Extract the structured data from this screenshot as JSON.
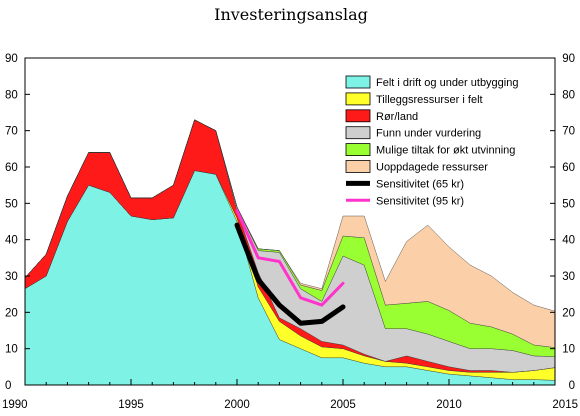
{
  "chart_data": {
    "type": "area",
    "title": "Investeringsanslag",
    "xlim": [
      1990,
      2015
    ],
    "ylim": [
      0,
      90
    ],
    "x_ticks": [
      1990,
      1995,
      2000,
      2005,
      2010,
      2015
    ],
    "y_ticks": [
      0,
      10,
      20,
      30,
      40,
      50,
      60,
      70,
      80,
      90
    ],
    "grid": false,
    "legend_position": "top-right",
    "x": [
      1990,
      1991,
      1992,
      1993,
      1994,
      1995,
      1996,
      1997,
      1998,
      1999,
      2000,
      2001,
      2002,
      2003,
      2004,
      2005,
      2006,
      2007,
      2008,
      2009,
      2010,
      2011,
      2012,
      2013,
      2014,
      2015
    ],
    "series": [
      {
        "name": "Felt i drift og under utbygging",
        "color": "#7ff2e6",
        "values": [
          26.5,
          30,
          45,
          55,
          53,
          46.5,
          45.5,
          46,
          59,
          58,
          45,
          24,
          12.5,
          10,
          7.5,
          7.5,
          6,
          5,
          5,
          4,
          3,
          2.5,
          2,
          1.5,
          1.5,
          1.3
        ]
      },
      {
        "name": "Tilleggsressurser i felt",
        "color": "#ffff2a",
        "values": [
          0,
          0,
          0,
          0,
          0,
          0,
          0,
          0,
          0,
          0,
          1,
          3,
          5,
          3.5,
          3,
          2.5,
          2,
          1.5,
          1,
          1,
          1,
          1,
          1.5,
          2,
          2.5,
          3.5
        ]
      },
      {
        "name": "Rør/land",
        "color": "#ff1a1a",
        "values": [
          3,
          6,
          7,
          9,
          11,
          5,
          6,
          9,
          14,
          12,
          2,
          4,
          1,
          2,
          1.5,
          1,
          0.5,
          0,
          2,
          1.5,
          1,
          0.5,
          0.5,
          0,
          0,
          0
        ]
      },
      {
        "name": "Funn under vurdering",
        "color": "#cfcfcf",
        "values": [
          0,
          0,
          0,
          0,
          0,
          0,
          0,
          0,
          0,
          0,
          1,
          6,
          18,
          11,
          11,
          24.5,
          24.5,
          9,
          7.5,
          7.5,
          7,
          6,
          6,
          6,
          4,
          3
        ]
      },
      {
        "name": "Mulige tiltak for økt utvinning",
        "color": "#99ff33",
        "values": [
          0,
          0,
          0,
          0,
          0,
          0,
          0,
          0,
          0,
          0,
          0,
          0.5,
          0.5,
          1,
          3,
          5.5,
          7.5,
          6.5,
          7,
          9,
          8.5,
          7,
          6,
          4.5,
          3,
          2.5
        ]
      },
      {
        "name": "Uoppdagede ressurser",
        "color": "#fbcfa8",
        "values": [
          0,
          0,
          0,
          0,
          0,
          0,
          0,
          0,
          0,
          0,
          0,
          0,
          0,
          0.5,
          0.5,
          5.5,
          6,
          6.5,
          17,
          21,
          17.5,
          16,
          14,
          11.5,
          11,
          10
        ]
      }
    ],
    "sensitivities": [
      {
        "name": "Sensitivitet (65 kr)",
        "color": "#000000",
        "x": [
          2000,
          2001,
          2002,
          2003,
          2004,
          2005
        ],
        "values": [
          44,
          29,
          22,
          17,
          17.5,
          21.5
        ]
      },
      {
        "name": "Sensitivitet (95 kr)",
        "color": "#ff33cc",
        "x": [
          2000,
          2001,
          2002,
          2003,
          2004,
          2005
        ],
        "values": [
          48,
          35,
          34,
          24,
          22,
          28
        ]
      }
    ]
  }
}
